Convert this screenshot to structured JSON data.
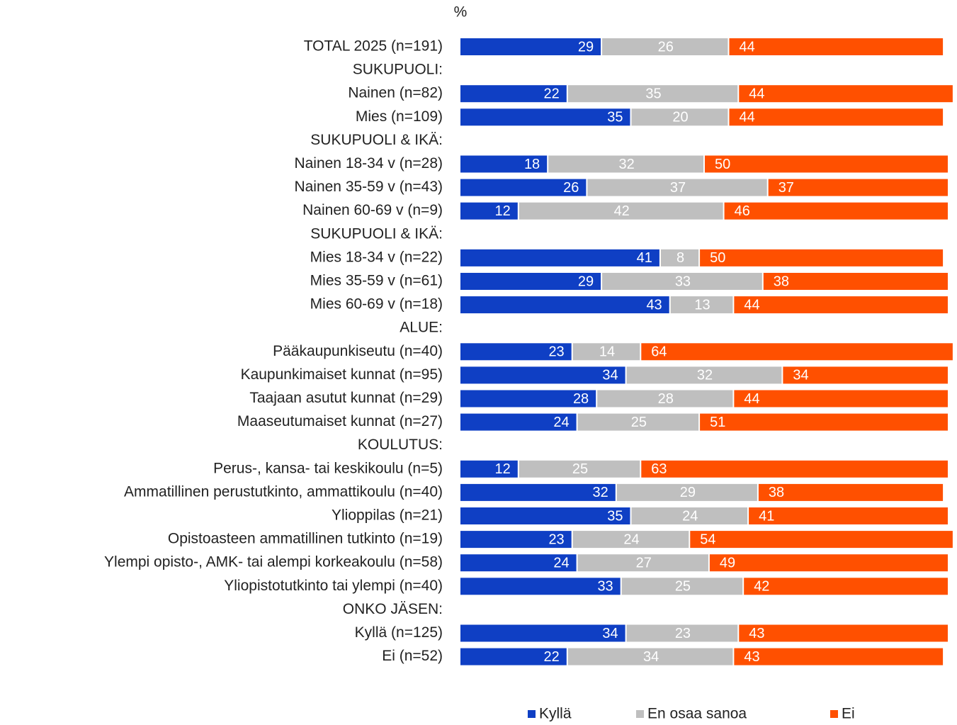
{
  "chart_data": {
    "type": "stacked_bar_horizontal",
    "axis_label": "%",
    "categories": [
      "TOTAL 2025 (n=191)",
      "SUKUPUOLI:",
      "Nainen (n=82)",
      "Mies (n=109)",
      "SUKUPUOLI & IKÄ:",
      "Nainen 18-34 v (n=28)",
      "Nainen 35-59 v (n=43)",
      "Nainen 60-69 v (n=9)",
      "SUKUPUOLI & IKÄ:",
      "Mies 18-34 v (n=22)",
      "Mies 35-59 v (n=61)",
      "Mies 60-69 v (n=18)",
      "ALUE:",
      "Pääkaupunkiseutu (n=40)",
      "Kaupunkimaiset kunnat (n=95)",
      "Taajaan asutut kunnat (n=29)",
      "Maaseutumaiset kunnat (n=27)",
      "KOULUTUS:",
      "Perus-, kansa- tai keskikoulu (n=5)",
      "Ammatillinen perustutkinto, ammattikoulu (n=40)",
      "Ylioppilas (n=21)",
      "Opistoasteen ammatillinen tutkinto (n=19)",
      "Ylempi opisto-, AMK- tai alempi korkeakoulu (n=58)",
      "Yliopistotutkinto tai ylempi (n=40)",
      "ONKO JÄSEN:",
      "Kyllä (n=125)",
      "Ei (n=52)"
    ],
    "series": [
      {
        "name": "Kyllä",
        "color": "#0f3fc4",
        "values": [
          29,
          null,
          22,
          35,
          null,
          18,
          26,
          12,
          null,
          41,
          29,
          43,
          null,
          23,
          34,
          28,
          24,
          null,
          12,
          32,
          35,
          23,
          24,
          33,
          null,
          34,
          22
        ]
      },
      {
        "name": "En osaa sanoa",
        "color": "#bfbfbf",
        "values": [
          26,
          null,
          35,
          20,
          null,
          32,
          37,
          42,
          null,
          8,
          33,
          13,
          null,
          14,
          32,
          28,
          25,
          null,
          25,
          29,
          24,
          24,
          27,
          25,
          null,
          23,
          34
        ]
      },
      {
        "name": "Ei",
        "color": "#ff5000",
        "values": [
          44,
          null,
          44,
          44,
          null,
          50,
          37,
          46,
          null,
          50,
          38,
          44,
          null,
          64,
          34,
          44,
          51,
          null,
          63,
          38,
          41,
          54,
          49,
          42,
          null,
          43,
          43
        ]
      }
    ],
    "xlim": [
      0,
      100
    ],
    "legend": "bottom"
  }
}
